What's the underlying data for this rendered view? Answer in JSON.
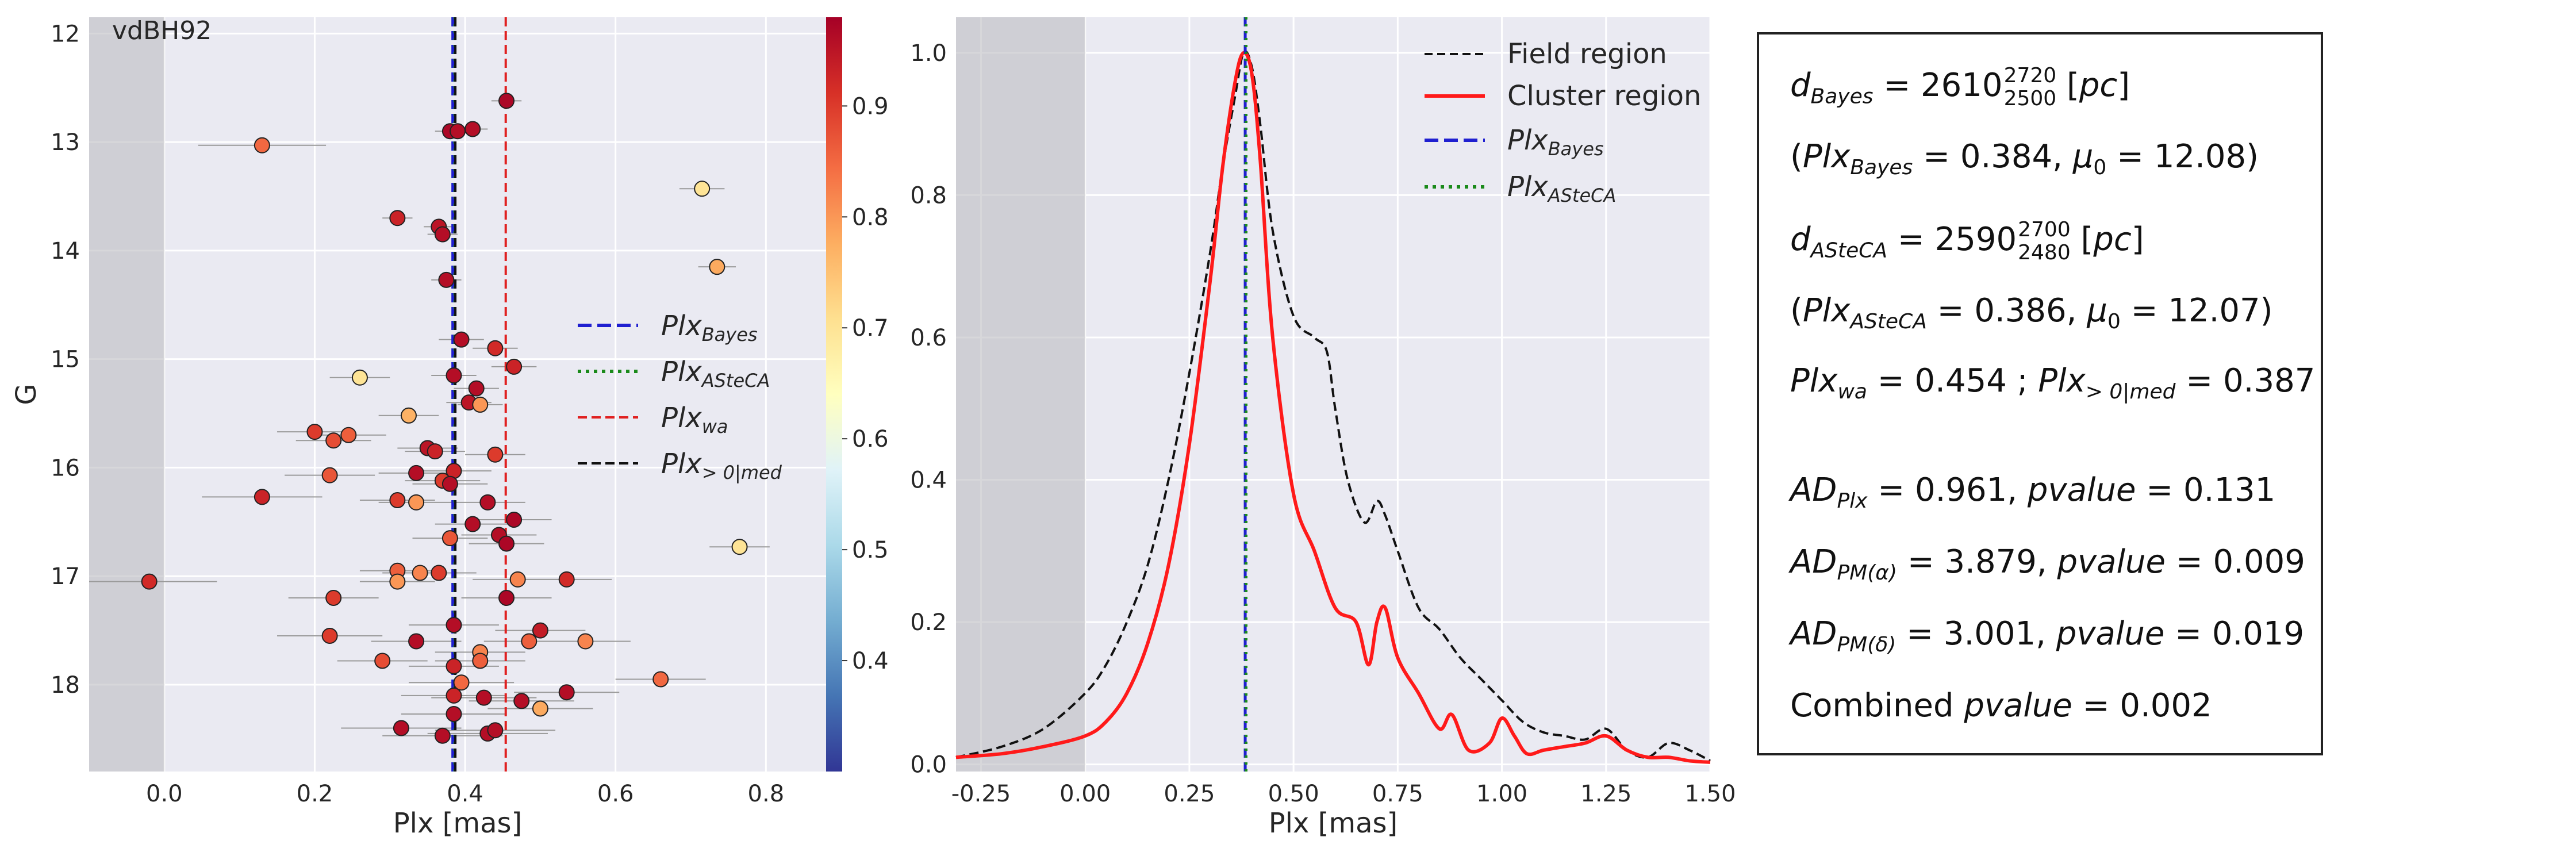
{
  "chart_data": [
    {
      "type": "scatter",
      "annotation": "vdBH92",
      "xlabel": "Plx [mas]",
      "ylabel": "G",
      "xlim": [
        -0.1,
        0.88
      ],
      "ylim": [
        18.8,
        11.85
      ],
      "y_inverted": true,
      "x_ticks": [
        "0.0",
        "0.2",
        "0.4",
        "0.6",
        "0.8"
      ],
      "y_ticks": [
        "12",
        "13",
        "14",
        "15",
        "16",
        "17",
        "18"
      ],
      "shaded_region_x": [
        -0.1,
        0.0
      ],
      "colorbar": {
        "ticks": [
          "0.4",
          "0.5",
          "0.6",
          "0.7",
          "0.8",
          "0.9"
        ],
        "range": [
          0.3,
          0.98
        ],
        "cmap": "RdYlBu_r"
      },
      "vlines": [
        {
          "name": "Plx_Bayes",
          "x": 0.384,
          "style": "dashed",
          "color": "#1f1fd0"
        },
        {
          "name": "Plx_ASteCA",
          "x": 0.386,
          "style": "dotted",
          "color": "#1a8a1a"
        },
        {
          "name": "Plx_wa",
          "x": 0.454,
          "style": "dashed",
          "color": "#e02020"
        },
        {
          "name": "Plx_>0|med",
          "x": 0.387,
          "style": "dashed",
          "color": "#111111"
        }
      ],
      "legend": [
        "Plx_Bayes",
        "Plx_ASteCA",
        "Plx_wa",
        "Plx_>0|med"
      ],
      "legend_location": "center-right",
      "points": [
        {
          "x": 0.455,
          "y": 12.62,
          "xerr": 0.02,
          "p": 0.97
        },
        {
          "x": 0.13,
          "y": 13.03,
          "xerr": 0.085,
          "p": 0.85
        },
        {
          "x": 0.38,
          "y": 12.9,
          "xerr": 0.02,
          "p": 0.97
        },
        {
          "x": 0.39,
          "y": 12.9,
          "xerr": 0.02,
          "p": 0.96
        },
        {
          "x": 0.41,
          "y": 12.88,
          "xerr": 0.02,
          "p": 0.96
        },
        {
          "x": 0.715,
          "y": 13.43,
          "xerr": 0.03,
          "p": 0.7
        },
        {
          "x": 0.31,
          "y": 13.7,
          "xerr": 0.02,
          "p": 0.93
        },
        {
          "x": 0.365,
          "y": 13.78,
          "xerr": 0.02,
          "p": 0.95
        },
        {
          "x": 0.37,
          "y": 13.85,
          "xerr": 0.02,
          "p": 0.96
        },
        {
          "x": 0.735,
          "y": 14.15,
          "xerr": 0.025,
          "p": 0.78
        },
        {
          "x": 0.375,
          "y": 14.27,
          "xerr": 0.02,
          "p": 0.96
        },
        {
          "x": 0.395,
          "y": 14.82,
          "xerr": 0.03,
          "p": 0.96
        },
        {
          "x": 0.44,
          "y": 14.9,
          "xerr": 0.03,
          "p": 0.92
        },
        {
          "x": 0.465,
          "y": 15.07,
          "xerr": 0.03,
          "p": 0.93
        },
        {
          "x": 0.26,
          "y": 15.17,
          "xerr": 0.04,
          "p": 0.7
        },
        {
          "x": 0.385,
          "y": 15.15,
          "xerr": 0.03,
          "p": 0.96
        },
        {
          "x": 0.415,
          "y": 15.27,
          "xerr": 0.03,
          "p": 0.96
        },
        {
          "x": 0.405,
          "y": 15.4,
          "xerr": 0.03,
          "p": 0.95
        },
        {
          "x": 0.42,
          "y": 15.42,
          "xerr": 0.03,
          "p": 0.8
        },
        {
          "x": 0.325,
          "y": 15.52,
          "xerr": 0.04,
          "p": 0.77
        },
        {
          "x": 0.2,
          "y": 15.67,
          "xerr": 0.05,
          "p": 0.9
        },
        {
          "x": 0.225,
          "y": 15.75,
          "xerr": 0.05,
          "p": 0.88
        },
        {
          "x": 0.245,
          "y": 15.7,
          "xerr": 0.05,
          "p": 0.86
        },
        {
          "x": 0.35,
          "y": 15.82,
          "xerr": 0.04,
          "p": 0.95
        },
        {
          "x": 0.36,
          "y": 15.85,
          "xerr": 0.04,
          "p": 0.93
        },
        {
          "x": 0.44,
          "y": 15.88,
          "xerr": 0.04,
          "p": 0.9
        },
        {
          "x": 0.22,
          "y": 16.07,
          "xerr": 0.06,
          "p": 0.87
        },
        {
          "x": 0.335,
          "y": 16.05,
          "xerr": 0.05,
          "p": 0.96
        },
        {
          "x": 0.37,
          "y": 16.12,
          "xerr": 0.05,
          "p": 0.9
        },
        {
          "x": 0.385,
          "y": 16.03,
          "xerr": 0.05,
          "p": 0.93
        },
        {
          "x": 0.38,
          "y": 16.15,
          "xerr": 0.05,
          "p": 0.96
        },
        {
          "x": 0.13,
          "y": 16.27,
          "xerr": 0.08,
          "p": 0.93
        },
        {
          "x": 0.31,
          "y": 16.3,
          "xerr": 0.05,
          "p": 0.9
        },
        {
          "x": 0.335,
          "y": 16.32,
          "xerr": 0.05,
          "p": 0.8
        },
        {
          "x": 0.43,
          "y": 16.32,
          "xerr": 0.05,
          "p": 0.96
        },
        {
          "x": 0.465,
          "y": 16.48,
          "xerr": 0.05,
          "p": 0.97
        },
        {
          "x": 0.445,
          "y": 16.62,
          "xerr": 0.05,
          "p": 0.96
        },
        {
          "x": 0.38,
          "y": 16.65,
          "xerr": 0.05,
          "p": 0.87
        },
        {
          "x": 0.41,
          "y": 16.52,
          "xerr": 0.05,
          "p": 0.96
        },
        {
          "x": 0.455,
          "y": 16.7,
          "xerr": 0.05,
          "p": 0.97
        },
        {
          "x": 0.765,
          "y": 16.73,
          "xerr": 0.04,
          "p": 0.7
        },
        {
          "x": -0.02,
          "y": 17.05,
          "xerr": 0.09,
          "p": 0.92
        },
        {
          "x": 0.31,
          "y": 16.95,
          "xerr": 0.05,
          "p": 0.86
        },
        {
          "x": 0.34,
          "y": 16.97,
          "xerr": 0.05,
          "p": 0.82
        },
        {
          "x": 0.365,
          "y": 16.97,
          "xerr": 0.05,
          "p": 0.9
        },
        {
          "x": 0.31,
          "y": 17.05,
          "xerr": 0.05,
          "p": 0.8
        },
        {
          "x": 0.47,
          "y": 17.03,
          "xerr": 0.06,
          "p": 0.82
        },
        {
          "x": 0.535,
          "y": 17.03,
          "xerr": 0.06,
          "p": 0.92
        },
        {
          "x": 0.225,
          "y": 17.2,
          "xerr": 0.06,
          "p": 0.9
        },
        {
          "x": 0.455,
          "y": 17.2,
          "xerr": 0.06,
          "p": 0.97
        },
        {
          "x": 0.385,
          "y": 17.45,
          "xerr": 0.06,
          "p": 0.96
        },
        {
          "x": 0.5,
          "y": 17.5,
          "xerr": 0.06,
          "p": 0.94
        },
        {
          "x": 0.22,
          "y": 17.55,
          "xerr": 0.07,
          "p": 0.9
        },
        {
          "x": 0.335,
          "y": 17.6,
          "xerr": 0.06,
          "p": 0.96
        },
        {
          "x": 0.485,
          "y": 17.6,
          "xerr": 0.06,
          "p": 0.86
        },
        {
          "x": 0.56,
          "y": 17.6,
          "xerr": 0.06,
          "p": 0.82
        },
        {
          "x": 0.42,
          "y": 17.7,
          "xerr": 0.06,
          "p": 0.82
        },
        {
          "x": 0.42,
          "y": 17.78,
          "xerr": 0.06,
          "p": 0.86
        },
        {
          "x": 0.29,
          "y": 17.78,
          "xerr": 0.06,
          "p": 0.88
        },
        {
          "x": 0.385,
          "y": 17.83,
          "xerr": 0.06,
          "p": 0.93
        },
        {
          "x": 0.395,
          "y": 17.98,
          "xerr": 0.07,
          "p": 0.85
        },
        {
          "x": 0.66,
          "y": 17.95,
          "xerr": 0.06,
          "p": 0.85
        },
        {
          "x": 0.535,
          "y": 18.07,
          "xerr": 0.07,
          "p": 0.96
        },
        {
          "x": 0.385,
          "y": 18.1,
          "xerr": 0.07,
          "p": 0.93
        },
        {
          "x": 0.425,
          "y": 18.12,
          "xerr": 0.07,
          "p": 0.96
        },
        {
          "x": 0.475,
          "y": 18.15,
          "xerr": 0.07,
          "p": 0.96
        },
        {
          "x": 0.5,
          "y": 18.22,
          "xerr": 0.07,
          "p": 0.78
        },
        {
          "x": 0.385,
          "y": 18.27,
          "xerr": 0.07,
          "p": 0.96
        },
        {
          "x": 0.315,
          "y": 18.4,
          "xerr": 0.08,
          "p": 0.96
        },
        {
          "x": 0.37,
          "y": 18.47,
          "xerr": 0.08,
          "p": 0.96
        },
        {
          "x": 0.43,
          "y": 18.45,
          "xerr": 0.08,
          "p": 0.96
        },
        {
          "x": 0.44,
          "y": 18.42,
          "xerr": 0.08,
          "p": 0.96
        }
      ]
    },
    {
      "type": "line",
      "xlabel": "Plx [mas]",
      "ylabel": "",
      "xlim": [
        -0.31,
        1.5
      ],
      "ylim": [
        -0.01,
        1.05
      ],
      "x_ticks": [
        "-0.25",
        "0.00",
        "0.25",
        "0.50",
        "0.75",
        "1.00",
        "1.25",
        "1.50"
      ],
      "y_ticks": [
        "0.0",
        "0.2",
        "0.4",
        "0.6",
        "0.8",
        "1.0"
      ],
      "shaded_region_x": [
        -0.31,
        0.0
      ],
      "legend_location": "top-right",
      "series": [
        {
          "name": "Field region",
          "style": "dashed",
          "color": "#111111",
          "x": [
            -0.31,
            -0.2,
            -0.1,
            0.0,
            0.05,
            0.1,
            0.15,
            0.2,
            0.25,
            0.3,
            0.33,
            0.36,
            0.38,
            0.4,
            0.42,
            0.45,
            0.5,
            0.55,
            0.58,
            0.6,
            0.63,
            0.67,
            0.7,
            0.72,
            0.75,
            0.8,
            0.85,
            0.9,
            0.95,
            1.0,
            1.05,
            1.1,
            1.15,
            1.2,
            1.25,
            1.3,
            1.35,
            1.4,
            1.45,
            1.5
          ],
          "y": [
            0.01,
            0.025,
            0.05,
            0.1,
            0.14,
            0.2,
            0.28,
            0.4,
            0.55,
            0.72,
            0.84,
            0.94,
            1.0,
            0.98,
            0.9,
            0.75,
            0.63,
            0.6,
            0.58,
            0.5,
            0.4,
            0.34,
            0.37,
            0.35,
            0.3,
            0.22,
            0.19,
            0.15,
            0.12,
            0.09,
            0.06,
            0.045,
            0.04,
            0.035,
            0.05,
            0.02,
            0.01,
            0.03,
            0.02,
            0.005
          ]
        },
        {
          "name": "Cluster region",
          "style": "solid",
          "color": "#ff1a1a",
          "x": [
            -0.31,
            -0.2,
            -0.1,
            0.0,
            0.05,
            0.1,
            0.15,
            0.2,
            0.25,
            0.3,
            0.33,
            0.36,
            0.38,
            0.4,
            0.42,
            0.45,
            0.5,
            0.55,
            0.6,
            0.65,
            0.68,
            0.7,
            0.72,
            0.75,
            0.8,
            0.85,
            0.88,
            0.92,
            0.97,
            1.0,
            1.03,
            1.06,
            1.1,
            1.15,
            1.2,
            1.25,
            1.3,
            1.35,
            1.4,
            1.45,
            1.5
          ],
          "y": [
            0.01,
            0.015,
            0.025,
            0.04,
            0.06,
            0.1,
            0.17,
            0.28,
            0.45,
            0.68,
            0.84,
            0.96,
            1.0,
            0.97,
            0.85,
            0.6,
            0.38,
            0.3,
            0.22,
            0.2,
            0.14,
            0.2,
            0.22,
            0.15,
            0.1,
            0.05,
            0.07,
            0.02,
            0.03,
            0.065,
            0.04,
            0.015,
            0.02,
            0.025,
            0.03,
            0.04,
            0.02,
            0.01,
            0.01,
            0.005,
            0.003
          ]
        }
      ],
      "vlines": [
        {
          "name": "Plx_Bayes",
          "x": 0.384,
          "style": "dashed",
          "color": "#1f1fd0"
        },
        {
          "name": "Plx_ASteCA",
          "x": 0.386,
          "style": "dotted",
          "color": "#1a8a1a"
        }
      ]
    }
  ],
  "panel3": {
    "line1": {
      "pre": "d",
      "sub": "Bayes",
      "eq": " = 2610",
      "sup2": "2720",
      "sub2": "2500",
      "tail": " [",
      "unit": "pc",
      "close": "]"
    },
    "line2": {
      "open": "(",
      "a": "Plx",
      "asub": "Bayes",
      "aval": " = 0.384,  ",
      "mu": "μ",
      "musub": "0",
      "muval": " = 12.08)"
    },
    "line3": {
      "pre": "d",
      "sub": "ASteCA",
      "eq": " = 2590",
      "sup2": "2700",
      "sub2": "2480",
      "tail": " [",
      "unit": "pc",
      "close": "]"
    },
    "line4": {
      "open": "(",
      "a": "Plx",
      "asub": "ASteCA",
      "aval": " = 0.386,  ",
      "mu": "μ",
      "musub": "0",
      "muval": " = 12.07)"
    },
    "line5": {
      "a": "Plx",
      "asub": "wa",
      "aval": " = 0.454 ; ",
      "b": "Plx",
      "bsub": "> 0|med",
      "bval": " = 0.387"
    },
    "line6": {
      "a": "AD",
      "asub": "Plx",
      "aval": " = 0.961,  ",
      "p": "pvalue",
      "pval": " = 0.131"
    },
    "line7": {
      "a": "AD",
      "asub": "PM(α)",
      "aval": " = 3.879,  ",
      "p": "pvalue",
      "pval": " = 0.009"
    },
    "line8": {
      "a": "AD",
      "asub": "PM(δ)",
      "aval": " = 3.001,  ",
      "p": "pvalue",
      "pval": " = 0.019"
    },
    "line9": {
      "a": "Combined ",
      "p": "pvalue",
      "pval": " = 0.002"
    }
  },
  "legend_labels": {
    "bayes": "Plx",
    "bayes_sub": "Bayes",
    "asteca": "Plx",
    "asteca_sub": "ASteCA",
    "wa": "Plx",
    "wa_sub": "wa",
    "med": "Plx",
    "med_sub": "> 0|med",
    "field": "Field region",
    "cluster": "Cluster region"
  }
}
